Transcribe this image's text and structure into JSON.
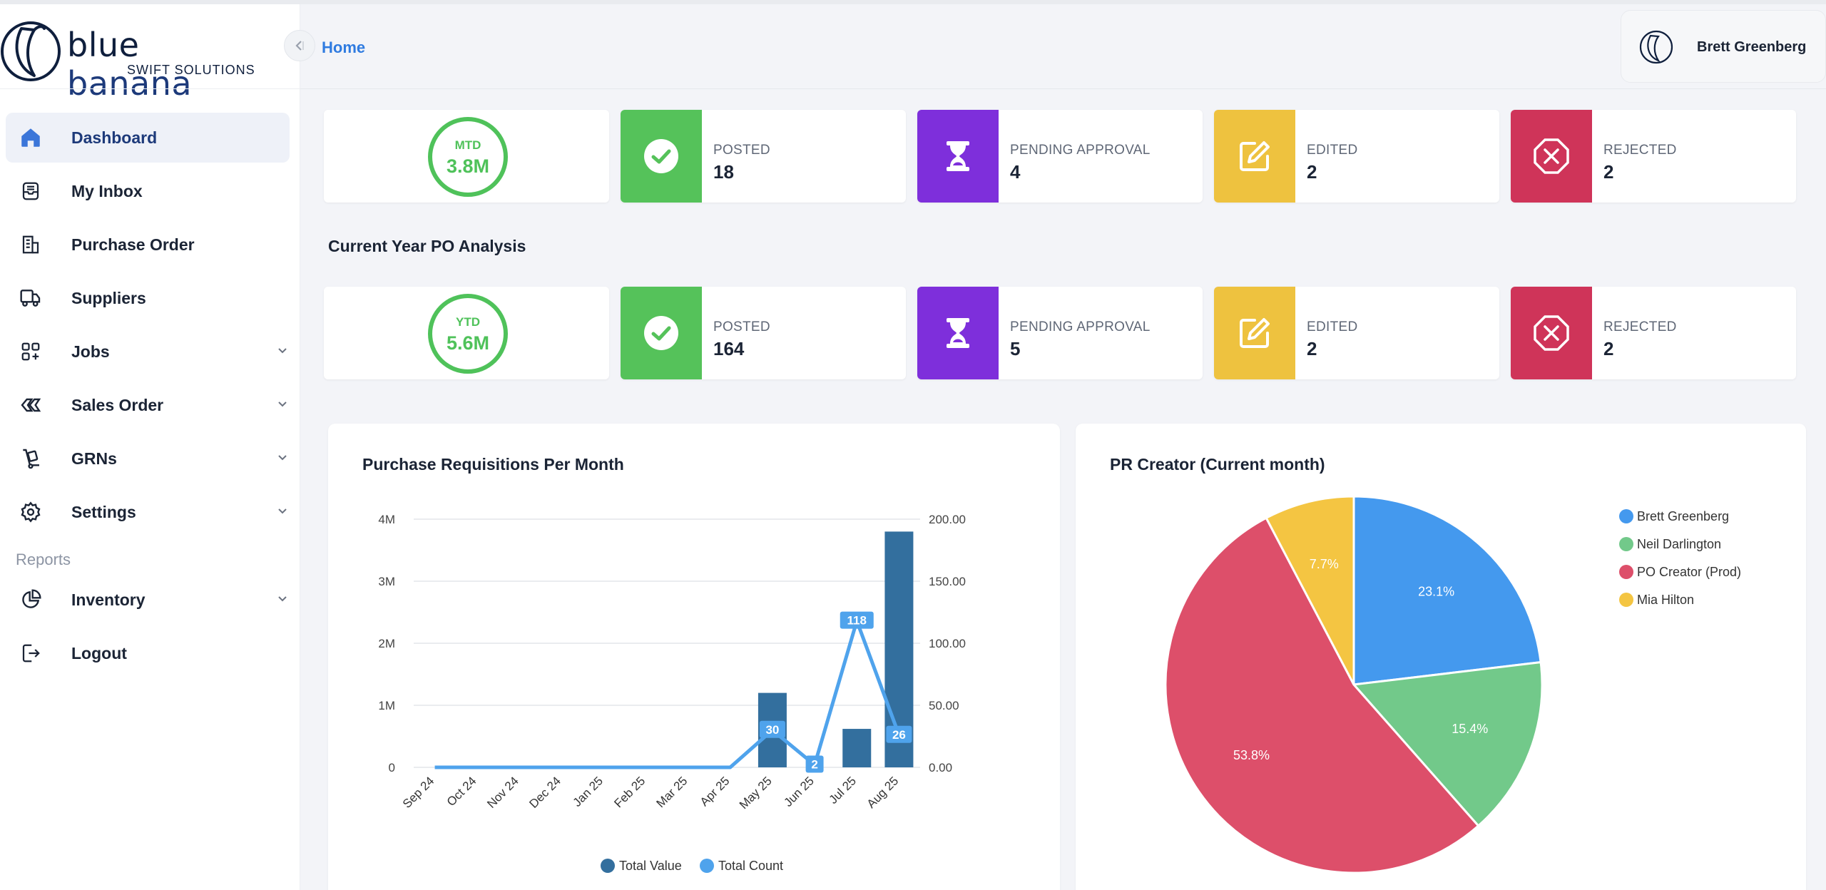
{
  "brand": {
    "name_part1": "blue",
    "name_part2": "banana",
    "tagline": "SWIFT SOLUTIONS"
  },
  "header": {
    "breadcrumb": "Home",
    "user_name": "Brett Greenberg"
  },
  "sidebar": {
    "items": [
      {
        "label": "Dashboard",
        "icon": "home-icon",
        "active": true
      },
      {
        "label": "My Inbox",
        "icon": "inbox-icon"
      },
      {
        "label": "Purchase Order",
        "icon": "purchase-order-icon"
      },
      {
        "label": "Suppliers",
        "icon": "truck-icon"
      },
      {
        "label": "Jobs",
        "icon": "jobs-grid-icon",
        "expandable": true
      },
      {
        "label": "Sales Order",
        "icon": "sales-order-icon",
        "expandable": true
      },
      {
        "label": "GRNs",
        "icon": "hand-truck-icon",
        "expandable": true
      },
      {
        "label": "Settings",
        "icon": "gear-icon",
        "expandable": true
      }
    ],
    "section_label": "Reports",
    "report_items": [
      {
        "label": "Inventory",
        "icon": "pie-chart-icon",
        "expandable": true
      },
      {
        "label": "Logout",
        "icon": "logout-icon"
      }
    ]
  },
  "mtd": {
    "ring_label": "MTD",
    "ring_value": "3.8M",
    "posted_label": "POSTED",
    "posted_value": "18",
    "pending_label": "PENDING APPROVAL",
    "pending_value": "4",
    "edited_label": "EDITED",
    "edited_value": "2",
    "rejected_label": "REJECTED",
    "rejected_value": "2"
  },
  "ytd_section_title": "Current Year PO Analysis",
  "ytd": {
    "ring_label": "YTD",
    "ring_value": "5.6M",
    "posted_label": "POSTED",
    "posted_value": "164",
    "pending_label": "PENDING APPROVAL",
    "pending_value": "5",
    "edited_label": "EDITED",
    "edited_value": "2",
    "rejected_label": "REJECTED",
    "rejected_value": "2"
  },
  "colors": {
    "posted": "#55c25a",
    "pending": "#7e2fdb",
    "edited": "#eec23f",
    "rejected": "#cf3459",
    "ring": "#4fc25a",
    "bar": "#336f9e",
    "line": "#4fa3ec"
  },
  "chart_data": [
    {
      "type": "bar",
      "title": "Purchase Requisitions Per Month",
      "categories": [
        "Sep 24",
        "Oct 24",
        "Nov 24",
        "Dec 24",
        "Jan 25",
        "Feb 25",
        "Mar 25",
        "Apr 25",
        "May 25",
        "Jun 25",
        "Jul 25",
        "Aug 25"
      ],
      "series": [
        {
          "name": "Total Value",
          "type": "bar",
          "axis": "left",
          "color": "#336f9e",
          "values": [
            0,
            0,
            0,
            0,
            0,
            0,
            0,
            0,
            1200000,
            0,
            620000,
            3800000
          ]
        },
        {
          "name": "Total Count",
          "type": "line",
          "axis": "right",
          "color": "#4fa3ec",
          "values": [
            0,
            0,
            0,
            0,
            0,
            0,
            0,
            0,
            30,
            2,
            118,
            26
          ],
          "data_labels": [
            "",
            "",
            "",
            "",
            "",
            "",
            "",
            "",
            "30",
            "2",
            "118",
            "26"
          ]
        }
      ],
      "y_left_ticks": [
        "4M",
        "3M",
        "2M",
        "1M",
        "0"
      ],
      "y_right_ticks": [
        "200.00",
        "150.00",
        "100.00",
        "50.00",
        "0.00"
      ],
      "ylim_left": [
        0,
        4000000
      ],
      "ylim_right": [
        0,
        200
      ],
      "grid": true,
      "legend_position": "bottom"
    },
    {
      "type": "pie",
      "title": "PR Creator (Current month)",
      "slices": [
        {
          "name": "Brett Greenberg",
          "value": 23.1,
          "label": "23.1%",
          "color": "#4499ee"
        },
        {
          "name": "Neil Darlington",
          "value": 15.4,
          "label": "15.4%",
          "color": "#72c98a"
        },
        {
          "name": "PO Creator (Prod)",
          "value": 53.8,
          "label": "53.8%",
          "color": "#dd4f6a"
        },
        {
          "name": "Mia Hilton",
          "value": 7.7,
          "label": "7.7%",
          "color": "#f4c542"
        }
      ],
      "legend_position": "right"
    }
  ]
}
